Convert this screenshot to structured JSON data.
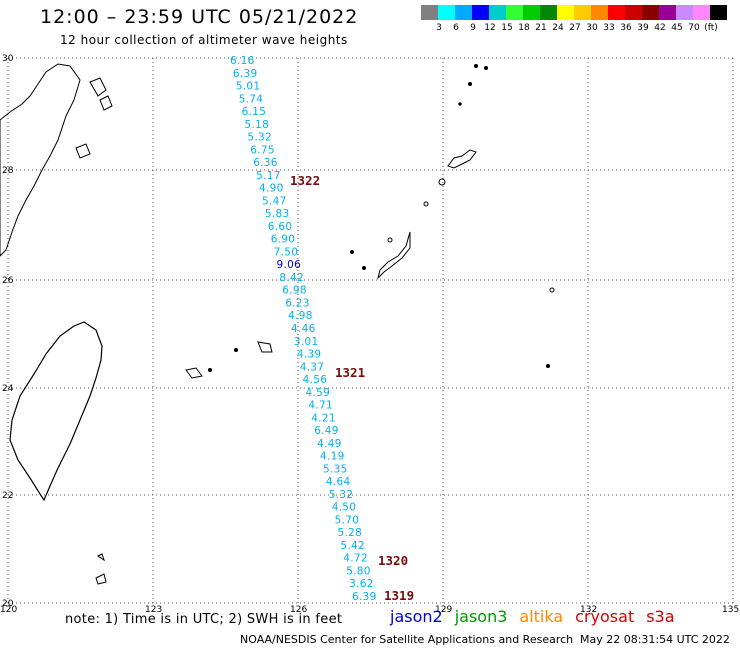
{
  "header": {
    "title": "12:00 – 23:59 UTC 05/21/2022",
    "subtitle": "12 hour collection of altimeter wave heights"
  },
  "colorbar": {
    "colors": [
      "#808080",
      "#00ffff",
      "#00aaff",
      "#0000ff",
      "#00cccc",
      "#33ff33",
      "#00cc00",
      "#008800",
      "#ffff00",
      "#ffcc00",
      "#ff8800",
      "#ff0000",
      "#cc0000",
      "#880000",
      "#990099",
      "#cc88ff",
      "#ff88ff",
      "#000000"
    ],
    "ticks": [
      "3",
      "6",
      "9",
      "12",
      "15",
      "18",
      "21",
      "24",
      "27",
      "30",
      "33",
      "36",
      "39",
      "42",
      "45",
      "70",
      "(ft)"
    ]
  },
  "map": {
    "lat_labels": [
      "30",
      "28",
      "26",
      "24",
      "22",
      "20"
    ],
    "lon_labels": [
      "120",
      "123",
      "126",
      "129",
      "132",
      "135"
    ],
    "land_color": "#000000"
  },
  "swh_track": {
    "color": "#00b0f0",
    "high_color": "#0000cc",
    "values": [
      "6.16",
      "6.39",
      "5.01",
      "5.74",
      "6.15",
      "5.18",
      "5.32",
      "6.75",
      "6.36",
      "5.17",
      "4.90",
      "5.47",
      "5.83",
      "6.60",
      "6.90",
      "7.50",
      "9.06",
      "8.42",
      "6.98",
      "6.23",
      "4.98",
      "4.46",
      "3.01",
      "4.39",
      "4.37",
      "4.56",
      "4.59",
      "4.71",
      "4.21",
      "6.49",
      "4.49",
      "4.19",
      "5.35",
      "4.64",
      "5.32",
      "4.50",
      "5.70",
      "5.28",
      "5.42",
      "4.72",
      "5.80",
      "3.62",
      "6.39"
    ]
  },
  "pass_labels": [
    "1322",
    "1321",
    "1320",
    "1319"
  ],
  "footer": {
    "note": "note: 1) Time is in UTC; 2) SWH is in feet",
    "satellites": [
      {
        "name": "jason2",
        "color": "#0000cc"
      },
      {
        "name": "jason3",
        "color": "#009900"
      },
      {
        "name": "altika",
        "color": "#ff8800"
      },
      {
        "name": "cryosat",
        "color": "#dd0000"
      },
      {
        "name": "s3a",
        "color": "#cc0000"
      }
    ],
    "credit": "NOAA/NESDIS Center for Satellite Applications and Research",
    "timestamp": "May 22 08:31:54 UTC 2022"
  }
}
